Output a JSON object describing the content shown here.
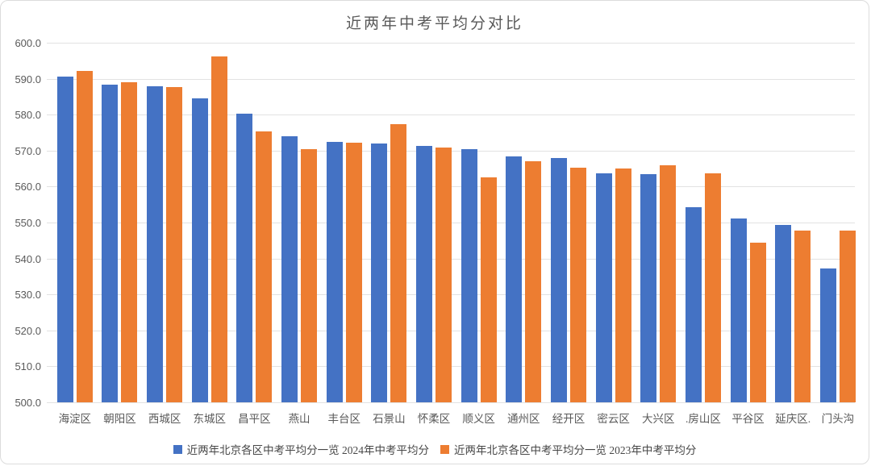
{
  "title": "近两年中考平均分对比",
  "colors": {
    "series_2024": "#4472C4",
    "series_2023": "#ED7D31",
    "gridline": "#E2E2E2",
    "axis_text": "#595959",
    "card_border": "#DCDCDC"
  },
  "y_axis": {
    "tick_labels": [
      "600.0",
      "590.0",
      "580.0",
      "570.0",
      "560.0",
      "550.0",
      "540.0",
      "530.0",
      "520.0",
      "510.0",
      "500.0"
    ]
  },
  "legend": {
    "items": [
      {
        "label": "近两年北京各区中考平均分一览 2024年中考平均分",
        "color": "#4472C4"
      },
      {
        "label": "近两年北京各区中考平均分一览 2023年中考平均分",
        "color": "#ED7D31"
      }
    ]
  },
  "chart_data": {
    "type": "bar",
    "title": "近两年中考平均分对比",
    "categories": [
      "海淀区",
      "朝阳区",
      "西城区",
      "东城区",
      "昌平区",
      "燕山",
      "丰台区",
      "石景山",
      "怀柔区",
      "顺义区",
      "通州区",
      "经开区",
      "密云区",
      "大兴区",
      ".房山区",
      "平谷区",
      "延庆区.",
      "门头沟"
    ],
    "series": [
      {
        "name": "近两年北京各区中考平均分一览 2024年中考平均分",
        "color": "#4472C4",
        "values": [
          590.6,
          588.4,
          588.0,
          584.5,
          580.3,
          573.9,
          572.5,
          571.9,
          571.2,
          570.3,
          568.3,
          567.9,
          563.7,
          563.4,
          554.3,
          551.1,
          549.3,
          537.3
        ]
      },
      {
        "name": "近两年北京各区中考平均分一览 2023年中考平均分",
        "color": "#ED7D31",
        "values": [
          592.2,
          589.1,
          587.6,
          596.2,
          575.4,
          570.5,
          572.3,
          577.4,
          570.8,
          562.6,
          567.0,
          565.2,
          565.0,
          566.0,
          563.7,
          544.3,
          547.8,
          547.7
        ]
      }
    ],
    "xlabel": "",
    "ylabel": "",
    "ylim": [
      500,
      600
    ],
    "ytick_step": 10,
    "grid": true,
    "legend_position": "bottom"
  }
}
